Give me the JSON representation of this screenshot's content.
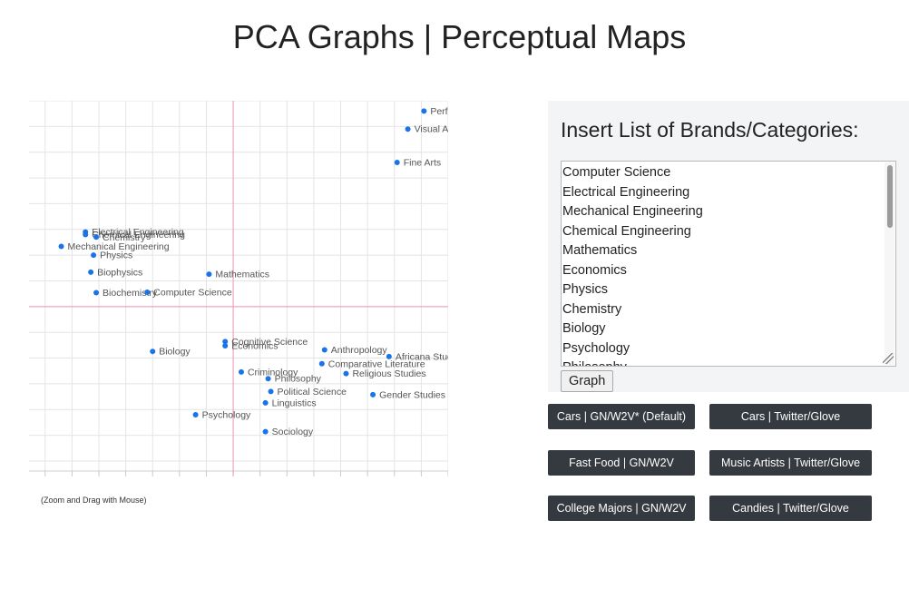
{
  "page": {
    "title": "PCA Graphs | Perceptual Maps"
  },
  "chart_data": {
    "type": "scatter",
    "title": "",
    "xlabel": "",
    "ylabel": "",
    "xlim": [
      -3.8,
      4.0
    ],
    "ylim": [
      -3.3,
      4.0
    ],
    "grid": true,
    "axis_lines": {
      "x": 0,
      "y": 0,
      "color": "#ef97ae"
    },
    "point_color": "#1a73e8",
    "series": [
      {
        "points": [
          {
            "label": "Performing Arts",
            "x": 3.55,
            "y": 3.8
          },
          {
            "label": "Visual Arts",
            "x": 3.25,
            "y": 3.45
          },
          {
            "label": "Fine Arts",
            "x": 3.05,
            "y": 2.8
          },
          {
            "label": "Electrical Engineering",
            "x": -2.75,
            "y": 1.45
          },
          {
            "label": "Chemical Engineering",
            "x": -2.75,
            "y": 1.4
          },
          {
            "label": "Chemistry",
            "x": -2.55,
            "y": 1.35
          },
          {
            "label": "Mechanical Engineering",
            "x": -3.2,
            "y": 1.17
          },
          {
            "label": "Physics",
            "x": -2.6,
            "y": 1.0
          },
          {
            "label": "Biophysics",
            "x": -2.65,
            "y": 0.67
          },
          {
            "label": "Mathematics",
            "x": -0.45,
            "y": 0.63
          },
          {
            "label": "Biochemistry",
            "x": -2.55,
            "y": 0.27
          },
          {
            "label": "Computer Science",
            "x": -1.6,
            "y": 0.28
          },
          {
            "label": "Cognitive Science",
            "x": -0.15,
            "y": -0.68
          },
          {
            "label": "Economics",
            "x": -0.15,
            "y": -0.76
          },
          {
            "label": "Biology",
            "x": -1.5,
            "y": -0.87
          },
          {
            "label": "Anthropology",
            "x": 1.7,
            "y": -0.84
          },
          {
            "label": "Africana Studies",
            "x": 2.9,
            "y": -0.97
          },
          {
            "label": "Comparative Literature",
            "x": 1.65,
            "y": -1.11
          },
          {
            "label": "Criminology",
            "x": 0.15,
            "y": -1.27
          },
          {
            "label": "Religious Studies",
            "x": 2.1,
            "y": -1.3
          },
          {
            "label": "Philosophy",
            "x": 0.65,
            "y": -1.4
          },
          {
            "label": "Political Science",
            "x": 0.7,
            "y": -1.65
          },
          {
            "label": "Gender Studies",
            "x": 2.6,
            "y": -1.71
          },
          {
            "label": "Linguistics",
            "x": 0.6,
            "y": -1.87
          },
          {
            "label": "Psychology",
            "x": -0.7,
            "y": -2.1
          },
          {
            "label": "Sociology",
            "x": 0.6,
            "y": -2.43
          }
        ]
      }
    ]
  },
  "chart_hint": "(Zoom and Drag with Mouse)",
  "panel": {
    "heading": "Insert List of Brands/Categories:",
    "list_lines": [
      "Computer Science",
      "Electrical Engineering",
      "Mechanical Engineering",
      "Chemical Engineering",
      "Mathematics",
      "Economics",
      "Physics",
      "Chemistry",
      "Biology",
      "Psychology",
      "Philosophy"
    ],
    "graph_button": "Graph"
  },
  "datasets": {
    "cars_gn": "Cars | GN/W2V* (Default)",
    "cars_twitter": "Cars | Twitter/Glove",
    "fastfood_gn": "Fast Food | GN/W2V",
    "music_twitter": "Music Artists | Twitter/Glove",
    "college_gn": "College Majors | GN/W2V",
    "candies_twitter": "Candies | Twitter/Glove"
  }
}
